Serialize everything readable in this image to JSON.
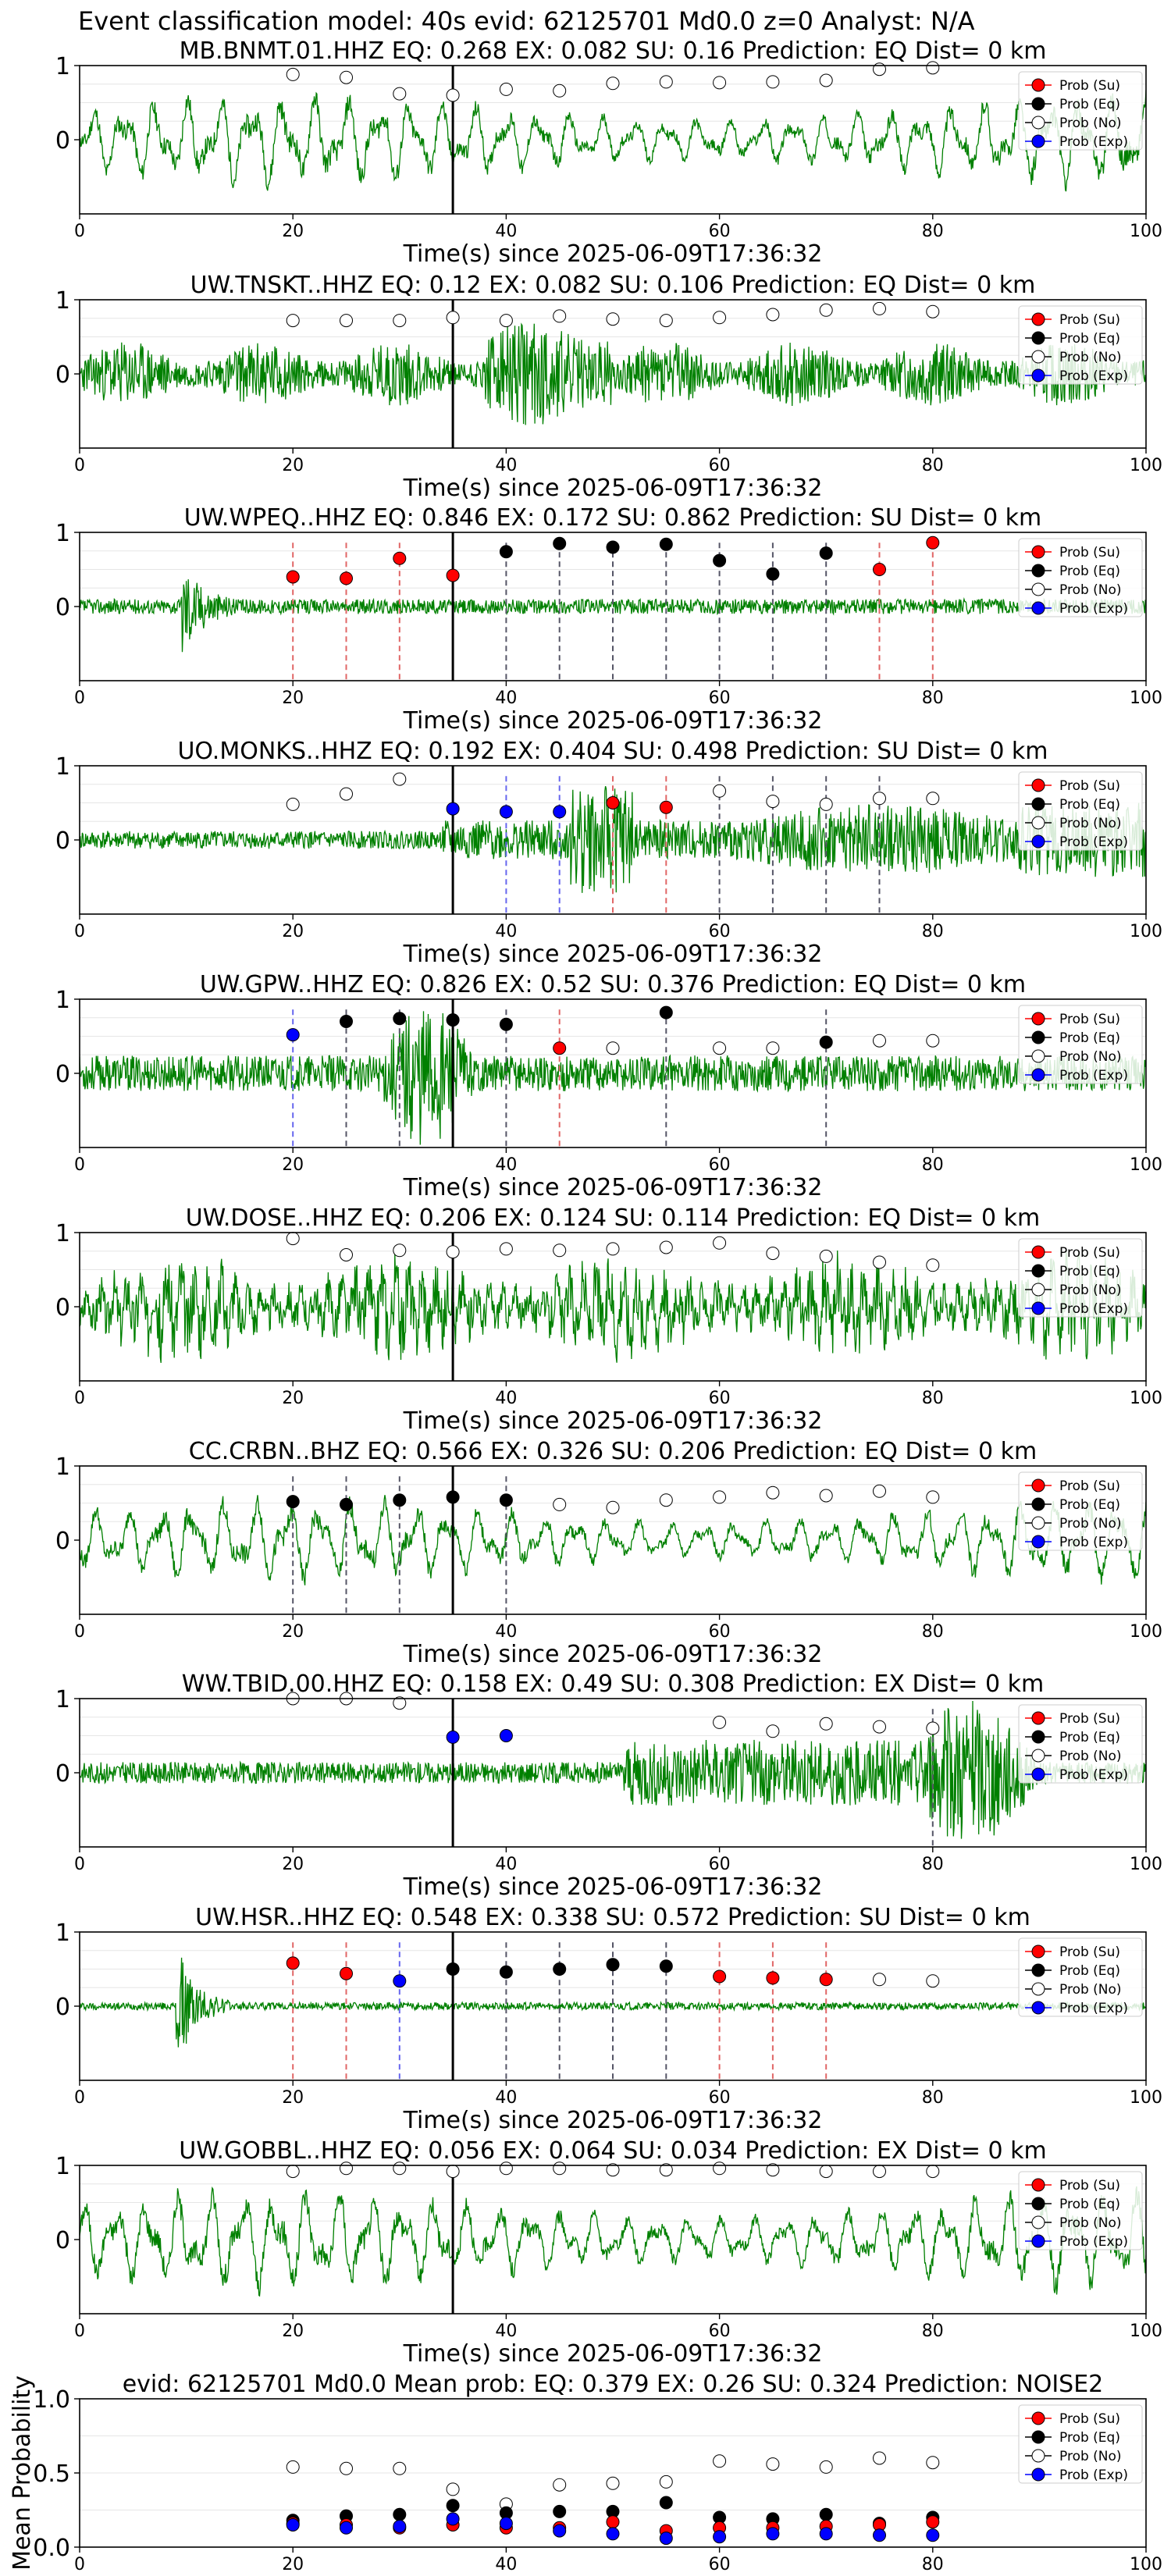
{
  "figure_title": "Event classification model: 40s evid: 62125701 Md0.0 z=0 Analyst: N/A",
  "colors": {
    "waveform": "#008000",
    "su": "#ff0000",
    "eq": "#000000",
    "no": "#ffffff",
    "exp": "#0000ff",
    "su_line": "#e06666",
    "eq_line": "#555566",
    "exp_line": "#6666ee"
  },
  "legend_labels": [
    "Prob (Su)",
    "Prob (Eq)",
    "Prob (No)",
    "Prob (Exp)"
  ],
  "chart_data": [
    {
      "type": "scatter",
      "panel": "station",
      "station": "MB.BNMT.01.HHZ",
      "eq": "0.268",
      "ex": "0.082",
      "su": "0.16",
      "prediction": "EQ",
      "dist": "0 km",
      "xlabel": "Time(s) since 2025-06-09T17:36:32",
      "xlim": [
        0,
        100
      ],
      "ylim": [
        -1,
        1
      ],
      "xticks": [
        0,
        20,
        40,
        60,
        80,
        100
      ],
      "yticks": [
        0,
        1
      ],
      "event_time": 35,
      "waveform": {
        "style": "lowfreq",
        "amp": 0.55,
        "seed": 11
      },
      "points": [
        [
          20,
          "no",
          0.88
        ],
        [
          25,
          "no",
          0.84
        ],
        [
          30,
          "no",
          0.62
        ],
        [
          35,
          "no",
          0.6
        ],
        [
          40,
          "no",
          0.68
        ],
        [
          45,
          "no",
          0.66
        ],
        [
          50,
          "no",
          0.76
        ],
        [
          55,
          "no",
          0.78
        ],
        [
          60,
          "no",
          0.77
        ],
        [
          65,
          "no",
          0.78
        ],
        [
          70,
          "no",
          0.8
        ],
        [
          75,
          "no",
          0.95
        ],
        [
          80,
          "no",
          0.97
        ]
      ],
      "lines": []
    },
    {
      "type": "scatter",
      "panel": "station",
      "station": "UW.TNSKT..HHZ",
      "eq": "0.12",
      "ex": "0.082",
      "su": "0.106",
      "prediction": "EQ",
      "dist": "0 km",
      "xlabel": "Time(s) since 2025-06-09T17:36:32",
      "xlim": [
        0,
        100
      ],
      "ylim": [
        -1,
        1
      ],
      "xticks": [
        0,
        20,
        40,
        60,
        80,
        100
      ],
      "yticks": [
        0,
        1
      ],
      "event_time": 35,
      "waveform": {
        "style": "highfreq",
        "amp": 0.55,
        "seed": 23
      },
      "points": [
        [
          20,
          "no",
          0.72
        ],
        [
          25,
          "no",
          0.72
        ],
        [
          30,
          "no",
          0.72
        ],
        [
          35,
          "no",
          0.76
        ],
        [
          40,
          "no",
          0.72
        ],
        [
          45,
          "no",
          0.78
        ],
        [
          50,
          "no",
          0.74
        ],
        [
          55,
          "no",
          0.72
        ],
        [
          60,
          "no",
          0.76
        ],
        [
          65,
          "no",
          0.8
        ],
        [
          70,
          "no",
          0.86
        ],
        [
          75,
          "no",
          0.88
        ],
        [
          80,
          "no",
          0.84
        ]
      ],
      "lines": []
    },
    {
      "type": "scatter",
      "panel": "station",
      "station": "UW.WPEQ..HHZ",
      "eq": "0.846",
      "ex": "0.172",
      "su": "0.862",
      "prediction": "SU",
      "dist": "0 km",
      "xlabel": "Time(s) since 2025-06-09T17:36:32",
      "xlim": [
        0,
        100
      ],
      "ylim": [
        -1,
        1
      ],
      "xticks": [
        0,
        20,
        40,
        60,
        80,
        100
      ],
      "yticks": [
        0,
        1
      ],
      "event_time": 35,
      "waveform": {
        "style": "quiet_burst",
        "amp": 0.1,
        "seed": 37,
        "burst_at": 9.5,
        "burst_amp": 0.7
      },
      "points": [
        [
          20,
          "su",
          0.4
        ],
        [
          25,
          "su",
          0.38
        ],
        [
          30,
          "su",
          0.65
        ],
        [
          35,
          "su",
          0.42
        ],
        [
          40,
          "eq",
          0.74
        ],
        [
          45,
          "eq",
          0.85
        ],
        [
          50,
          "eq",
          0.8
        ],
        [
          55,
          "eq",
          0.84
        ],
        [
          60,
          "eq",
          0.62
        ],
        [
          65,
          "eq",
          0.44
        ],
        [
          70,
          "eq",
          0.72
        ],
        [
          75,
          "su",
          0.5
        ],
        [
          80,
          "su",
          0.86
        ]
      ],
      "lines": [
        [
          20,
          "su"
        ],
        [
          25,
          "su"
        ],
        [
          30,
          "su"
        ],
        [
          40,
          "eq"
        ],
        [
          45,
          "eq"
        ],
        [
          50,
          "eq"
        ],
        [
          55,
          "eq"
        ],
        [
          60,
          "eq"
        ],
        [
          65,
          "eq"
        ],
        [
          70,
          "eq"
        ],
        [
          75,
          "su"
        ],
        [
          80,
          "su"
        ]
      ]
    },
    {
      "type": "scatter",
      "panel": "station",
      "station": "UO.MONKS..HHZ",
      "eq": "0.192",
      "ex": "0.404",
      "su": "0.498",
      "prediction": "SU",
      "dist": "0 km",
      "xlabel": "Time(s) since 2025-06-09T17:36:32",
      "xlim": [
        0,
        100
      ],
      "ylim": [
        -1,
        1
      ],
      "xticks": [
        0,
        20,
        40,
        60,
        80,
        100
      ],
      "yticks": [
        0,
        1
      ],
      "event_time": 35,
      "waveform": {
        "style": "monks",
        "amp": 0.12,
        "seed": 41
      },
      "points": [
        [
          20,
          "no",
          0.48
        ],
        [
          25,
          "no",
          0.62
        ],
        [
          30,
          "no",
          0.82
        ],
        [
          35,
          "exp",
          0.42
        ],
        [
          40,
          "exp",
          0.38
        ],
        [
          45,
          "exp",
          0.38
        ],
        [
          50,
          "su",
          0.5
        ],
        [
          55,
          "su",
          0.44
        ],
        [
          60,
          "no",
          0.66
        ],
        [
          65,
          "no",
          0.52
        ],
        [
          70,
          "no",
          0.48
        ],
        [
          75,
          "no",
          0.56
        ],
        [
          80,
          "no",
          0.56
        ]
      ],
      "lines": [
        [
          40,
          "exp"
        ],
        [
          45,
          "exp"
        ],
        [
          50,
          "su"
        ],
        [
          55,
          "su"
        ],
        [
          60,
          "eq"
        ],
        [
          65,
          "eq"
        ],
        [
          70,
          "eq"
        ],
        [
          75,
          "eq"
        ]
      ]
    },
    {
      "type": "scatter",
      "panel": "station",
      "station": "UW.GPW..HHZ",
      "eq": "0.826",
      "ex": "0.52",
      "su": "0.376",
      "prediction": "EQ",
      "dist": "0 km",
      "xlabel": "Time(s) since 2025-06-09T17:36:32",
      "xlim": [
        0,
        100
      ],
      "ylim": [
        -1,
        1
      ],
      "xticks": [
        0,
        20,
        40,
        60,
        80,
        100
      ],
      "yticks": [
        0,
        1
      ],
      "event_time": 35,
      "waveform": {
        "style": "gpw",
        "amp": 0.15,
        "seed": 53
      },
      "points": [
        [
          20,
          "exp",
          0.52
        ],
        [
          25,
          "eq",
          0.7
        ],
        [
          30,
          "eq",
          0.74
        ],
        [
          35,
          "eq",
          0.72
        ],
        [
          40,
          "eq",
          0.66
        ],
        [
          45,
          "su",
          0.34
        ],
        [
          50,
          "no",
          0.34
        ],
        [
          55,
          "eq",
          0.82
        ],
        [
          60,
          "no",
          0.34
        ],
        [
          65,
          "no",
          0.34
        ],
        [
          70,
          "eq",
          0.42
        ],
        [
          75,
          "no",
          0.44
        ],
        [
          80,
          "no",
          0.44
        ]
      ],
      "lines": [
        [
          20,
          "exp"
        ],
        [
          25,
          "eq"
        ],
        [
          30,
          "eq"
        ],
        [
          40,
          "eq"
        ],
        [
          45,
          "su"
        ],
        [
          55,
          "eq"
        ],
        [
          70,
          "eq"
        ]
      ]
    },
    {
      "type": "scatter",
      "panel": "station",
      "station": "UW.DOSE..HHZ",
      "eq": "0.206",
      "ex": "0.124",
      "su": "0.114",
      "prediction": "EQ",
      "dist": "0 km",
      "xlabel": "Time(s) since 2025-06-09T17:36:32",
      "xlim": [
        0,
        100
      ],
      "ylim": [
        -1,
        1
      ],
      "xticks": [
        0,
        20,
        40,
        60,
        80,
        100
      ],
      "yticks": [
        0,
        1
      ],
      "event_time": 35,
      "waveform": {
        "style": "midfreq",
        "amp": 0.6,
        "seed": 67
      },
      "points": [
        [
          20,
          "no",
          0.92
        ],
        [
          25,
          "no",
          0.7
        ],
        [
          30,
          "no",
          0.76
        ],
        [
          35,
          "no",
          0.74
        ],
        [
          40,
          "no",
          0.78
        ],
        [
          45,
          "no",
          0.76
        ],
        [
          50,
          "no",
          0.78
        ],
        [
          55,
          "no",
          0.8
        ],
        [
          60,
          "no",
          0.86
        ],
        [
          65,
          "no",
          0.72
        ],
        [
          70,
          "no",
          0.68
        ],
        [
          75,
          "no",
          0.6
        ],
        [
          80,
          "no",
          0.56
        ]
      ],
      "lines": []
    },
    {
      "type": "scatter",
      "panel": "station",
      "station": "CC.CRBN..BHZ",
      "eq": "0.566",
      "ex": "0.326",
      "su": "0.206",
      "prediction": "EQ",
      "dist": "0 km",
      "xlabel": "Time(s) since 2025-06-09T17:36:32",
      "xlim": [
        0,
        100
      ],
      "ylim": [
        -1,
        1
      ],
      "xticks": [
        0,
        20,
        40,
        60,
        80,
        100
      ],
      "yticks": [
        0,
        1
      ],
      "event_time": 35,
      "waveform": {
        "style": "lowfreq",
        "amp": 0.5,
        "seed": 79
      },
      "points": [
        [
          20,
          "eq",
          0.52
        ],
        [
          25,
          "eq",
          0.48
        ],
        [
          30,
          "eq",
          0.54
        ],
        [
          35,
          "eq",
          0.58
        ],
        [
          40,
          "eq",
          0.54
        ],
        [
          45,
          "no",
          0.48
        ],
        [
          50,
          "no",
          0.44
        ],
        [
          55,
          "no",
          0.54
        ],
        [
          60,
          "no",
          0.58
        ],
        [
          65,
          "no",
          0.64
        ],
        [
          70,
          "no",
          0.6
        ],
        [
          75,
          "no",
          0.66
        ],
        [
          80,
          "no",
          0.58
        ]
      ],
      "lines": [
        [
          20,
          "eq"
        ],
        [
          25,
          "eq"
        ],
        [
          30,
          "eq"
        ],
        [
          40,
          "eq"
        ]
      ]
    },
    {
      "type": "scatter",
      "panel": "station",
      "station": "WW.TBID.00.HHZ",
      "eq": "0.158",
      "ex": "0.49",
      "su": "0.308",
      "prediction": "EX",
      "dist": "0 km",
      "xlabel": "Time(s) since 2025-06-09T17:36:32",
      "xlim": [
        0,
        100
      ],
      "ylim": [
        -1,
        1
      ],
      "xticks": [
        0,
        20,
        40,
        60,
        80,
        100
      ],
      "yticks": [
        0,
        1
      ],
      "event_time": 35,
      "waveform": {
        "style": "tbid",
        "amp": 0.12,
        "seed": 83
      },
      "points": [
        [
          20,
          "no",
          1.0
        ],
        [
          25,
          "no",
          1.0
        ],
        [
          30,
          "no",
          0.94
        ],
        [
          35,
          "exp",
          0.48
        ],
        [
          40,
          "exp",
          0.5
        ],
        [
          60,
          "no",
          0.68
        ],
        [
          65,
          "no",
          0.56
        ],
        [
          70,
          "no",
          0.66
        ],
        [
          75,
          "no",
          0.62
        ],
        [
          80,
          "no",
          0.6
        ]
      ],
      "lines": [
        [
          80,
          "eq"
        ]
      ]
    },
    {
      "type": "scatter",
      "panel": "station",
      "station": "UW.HSR..HHZ",
      "eq": "0.548",
      "ex": "0.338",
      "su": "0.572",
      "prediction": "SU",
      "dist": "0 km",
      "xlabel": "Time(s) since 2025-06-09T17:36:32",
      "xlim": [
        0,
        100
      ],
      "ylim": [
        -1,
        1
      ],
      "xticks": [
        0,
        20,
        40,
        60,
        80,
        100
      ],
      "yticks": [
        0,
        1
      ],
      "event_time": 35,
      "waveform": {
        "style": "quiet_burst",
        "amp": 0.05,
        "seed": 97,
        "burst_at": 9,
        "burst_amp": 0.85
      },
      "points": [
        [
          20,
          "su",
          0.58
        ],
        [
          25,
          "su",
          0.44
        ],
        [
          30,
          "exp",
          0.34
        ],
        [
          35,
          "eq",
          0.5
        ],
        [
          40,
          "eq",
          0.46
        ],
        [
          45,
          "eq",
          0.5
        ],
        [
          50,
          "eq",
          0.56
        ],
        [
          55,
          "eq",
          0.54
        ],
        [
          60,
          "su",
          0.4
        ],
        [
          65,
          "su",
          0.38
        ],
        [
          70,
          "su",
          0.36
        ],
        [
          75,
          "no",
          0.36
        ],
        [
          80,
          "no",
          0.34
        ]
      ],
      "lines": [
        [
          20,
          "su"
        ],
        [
          25,
          "su"
        ],
        [
          30,
          "exp"
        ],
        [
          40,
          "eq"
        ],
        [
          45,
          "eq"
        ],
        [
          50,
          "eq"
        ],
        [
          55,
          "eq"
        ],
        [
          60,
          "su"
        ],
        [
          65,
          "su"
        ],
        [
          70,
          "su"
        ]
      ]
    },
    {
      "type": "scatter",
      "panel": "station",
      "station": "UW.GOBBL..HHZ",
      "eq": "0.056",
      "ex": "0.064",
      "su": "0.034",
      "prediction": "EX",
      "dist": "0 km",
      "xlabel": "Time(s) since 2025-06-09T17:36:32",
      "xlim": [
        0,
        100
      ],
      "ylim": [
        -1,
        1
      ],
      "xticks": [
        0,
        20,
        40,
        60,
        80,
        100
      ],
      "yticks": [
        0,
        1
      ],
      "event_time": 35,
      "waveform": {
        "style": "lowfreq",
        "amp": 0.6,
        "seed": 101
      },
      "points": [
        [
          20,
          "no",
          0.92
        ],
        [
          25,
          "no",
          0.96
        ],
        [
          30,
          "no",
          0.96
        ],
        [
          35,
          "no",
          0.92
        ],
        [
          40,
          "no",
          0.96
        ],
        [
          45,
          "no",
          0.96
        ],
        [
          50,
          "no",
          0.94
        ],
        [
          55,
          "no",
          0.94
        ],
        [
          60,
          "no",
          0.96
        ],
        [
          65,
          "no",
          0.94
        ],
        [
          70,
          "no",
          0.92
        ],
        [
          75,
          "no",
          0.92
        ],
        [
          80,
          "no",
          0.92
        ]
      ],
      "lines": []
    },
    {
      "type": "scatter",
      "panel": "mean",
      "title_prefix": "evid: 62125701   Md0.0   Mean prob:",
      "eq": "0.379",
      "ex": "0.26",
      "su": "0.324",
      "prediction": "NOISE2",
      "ylabel": "Mean Probability",
      "xlim": [
        0,
        100
      ],
      "ylim": [
        0,
        1
      ],
      "xticks": [
        0,
        20,
        40,
        60,
        80,
        100
      ],
      "yticks": [
        "0.0",
        "0.5",
        "1.0"
      ],
      "mean_series": {
        "x": [
          20,
          25,
          30,
          35,
          40,
          45,
          50,
          55,
          60,
          65,
          70,
          75,
          80
        ],
        "no": [
          0.54,
          0.53,
          0.53,
          0.39,
          0.29,
          0.42,
          0.43,
          0.44,
          0.58,
          0.56,
          0.54,
          0.6,
          0.57
        ],
        "eq": [
          0.18,
          0.21,
          0.22,
          0.28,
          0.23,
          0.24,
          0.24,
          0.3,
          0.2,
          0.19,
          0.22,
          0.16,
          0.2
        ],
        "su": [
          0.16,
          0.15,
          0.13,
          0.15,
          0.13,
          0.13,
          0.17,
          0.11,
          0.13,
          0.13,
          0.14,
          0.15,
          0.17
        ],
        "exp": [
          0.15,
          0.13,
          0.14,
          0.19,
          0.16,
          0.11,
          0.09,
          0.06,
          0.07,
          0.09,
          0.09,
          0.08,
          0.08
        ]
      }
    }
  ]
}
